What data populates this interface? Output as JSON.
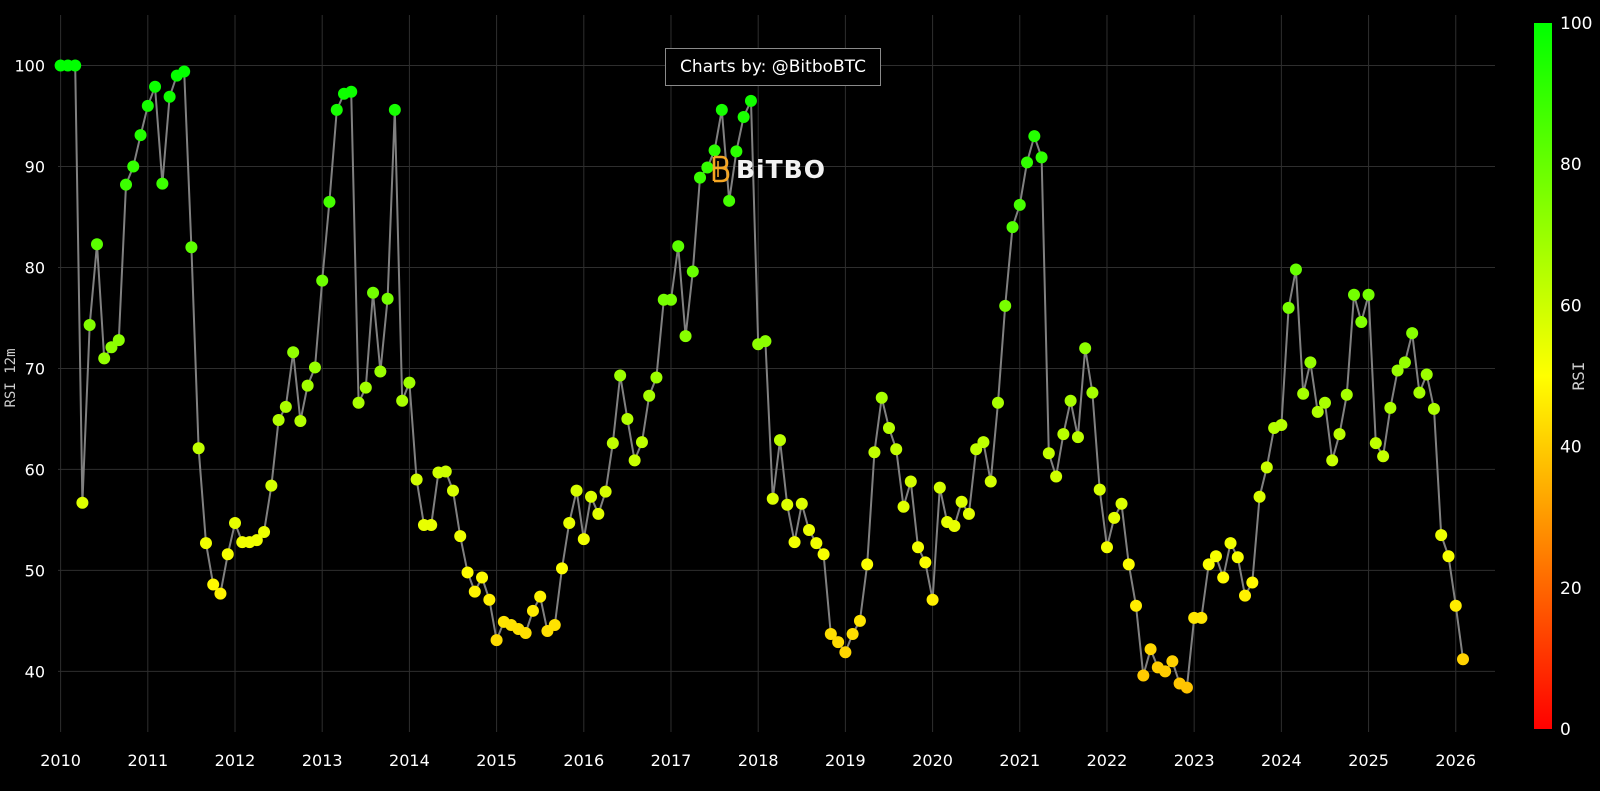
{
  "attribution": "Charts by: @BitboBTC",
  "logo_text": "BiTBO",
  "chart_data": {
    "type": "scatter",
    "title": "",
    "xlabel": "",
    "ylabel": "RSI 12m",
    "ylim": [
      34,
      105
    ],
    "xlim": [
      2009.97,
      2026.45
    ],
    "yticks": [
      40,
      50,
      60,
      70,
      80,
      90,
      100
    ],
    "xticks": [
      "2010",
      "2011",
      "2012",
      "2013",
      "2014",
      "2015",
      "2016",
      "2017",
      "2018",
      "2019",
      "2020",
      "2021",
      "2022",
      "2023",
      "2024",
      "2025",
      "2026"
    ],
    "colorbar": {
      "label": "RSI",
      "range": [
        0,
        100
      ],
      "ticks": [
        0,
        20,
        40,
        60,
        80,
        100
      ],
      "colors": [
        "#ff0000",
        "#ffff00",
        "#00ff00"
      ]
    },
    "line_color": "#808080",
    "series": [
      {
        "name": "RSI 12m",
        "x": [
          2010.0,
          2010.083,
          2010.167,
          2010.25,
          2010.333,
          2010.417,
          2010.5,
          2010.583,
          2010.667,
          2010.75,
          2010.833,
          2010.917,
          2011.0,
          2011.083,
          2011.167,
          2011.25,
          2011.333,
          2011.417,
          2011.5,
          2011.583,
          2011.667,
          2011.75,
          2011.833,
          2011.917,
          2012.0,
          2012.083,
          2012.167,
          2012.25,
          2012.333,
          2012.417,
          2012.5,
          2012.583,
          2012.667,
          2012.75,
          2012.833,
          2012.917,
          2013.0,
          2013.083,
          2013.167,
          2013.25,
          2013.333,
          2013.417,
          2013.5,
          2013.583,
          2013.667,
          2013.75,
          2013.833,
          2013.917,
          2014.0,
          2014.083,
          2014.167,
          2014.25,
          2014.333,
          2014.417,
          2014.5,
          2014.583,
          2014.667,
          2014.75,
          2014.833,
          2014.917,
          2015.0,
          2015.083,
          2015.167,
          2015.25,
          2015.333,
          2015.417,
          2015.5,
          2015.583,
          2015.667,
          2015.75,
          2015.833,
          2015.917,
          2016.0,
          2016.083,
          2016.167,
          2016.25,
          2016.333,
          2016.417,
          2016.5,
          2016.583,
          2016.667,
          2016.75,
          2016.833,
          2016.917,
          2017.0,
          2017.083,
          2017.167,
          2017.25,
          2017.333,
          2017.417,
          2017.5,
          2017.583,
          2017.667,
          2017.75,
          2017.833,
          2017.917,
          2018.0,
          2018.083,
          2018.167,
          2018.25,
          2018.333,
          2018.417,
          2018.5,
          2018.583,
          2018.667,
          2018.75,
          2018.833,
          2018.917,
          2019.0,
          2019.083,
          2019.167,
          2019.25,
          2019.333,
          2019.417,
          2019.5,
          2019.583,
          2019.667,
          2019.75,
          2019.833,
          2019.917,
          2020.0,
          2020.083,
          2020.167,
          2020.25,
          2020.333,
          2020.417,
          2020.5,
          2020.583,
          2020.667,
          2020.75,
          2020.833,
          2020.917,
          2021.0,
          2021.083,
          2021.167,
          2021.25,
          2021.333,
          2021.417,
          2021.5,
          2021.583,
          2021.667,
          2021.75,
          2021.833,
          2021.917,
          2022.0,
          2022.083,
          2022.167,
          2022.25,
          2022.333,
          2022.417,
          2022.5,
          2022.583,
          2022.667,
          2022.75,
          2022.833,
          2022.917,
          2023.0,
          2023.083,
          2023.167,
          2023.25,
          2023.333,
          2023.417,
          2023.5,
          2023.583,
          2023.667,
          2023.75,
          2023.833,
          2023.917,
          2024.0,
          2024.083,
          2024.167,
          2024.25,
          2024.333,
          2024.417,
          2024.5,
          2024.583,
          2024.667,
          2024.75,
          2024.833,
          2024.917,
          2025.0,
          2025.083,
          2025.167,
          2025.25,
          2025.333,
          2025.417,
          2025.5,
          2025.583,
          2025.667,
          2025.75,
          2025.833,
          2025.917,
          2026.0,
          2026.083
        ],
        "values": [
          100,
          100,
          100,
          56.7,
          74.3,
          82.3,
          71,
          72.1,
          72.8,
          88.2,
          90,
          93.1,
          96,
          97.9,
          88.3,
          96.9,
          99,
          99.4,
          82,
          62.1,
          52.7,
          48.6,
          47.7,
          51.6,
          54.7,
          52.8,
          52.8,
          53,
          53.8,
          58.4,
          64.9,
          66.2,
          71.6,
          64.8,
          68.3,
          70.1,
          78.7,
          86.5,
          95.6,
          97.2,
          97.4,
          66.6,
          68.1,
          77.5,
          69.7,
          76.9,
          95.6,
          66.8,
          68.6,
          59,
          54.5,
          54.5,
          59.7,
          59.8,
          57.9,
          53.4,
          49.8,
          47.9,
          49.3,
          47.1,
          43.1,
          44.9,
          44.6,
          44.2,
          43.8,
          46,
          47.4,
          44,
          44.6,
          50.2,
          54.7,
          57.9,
          53.1,
          57.3,
          55.6,
          57.8,
          62.6,
          69.3,
          65,
          60.9,
          62.7,
          67.3,
          69.1,
          76.8,
          76.8,
          82.1,
          73.2,
          79.6,
          88.9,
          89.9,
          91.6,
          95.6,
          86.6,
          91.5,
          94.9,
          96.5,
          72.4,
          72.7,
          57.1,
          62.9,
          56.5,
          52.8,
          56.6,
          54,
          52.7,
          51.6,
          43.7,
          42.9,
          41.9,
          43.7,
          45,
          50.6,
          61.7,
          67.1,
          64.1,
          62,
          56.3,
          58.8,
          52.3,
          50.8,
          47.1,
          58.2,
          54.8,
          54.4,
          56.8,
          55.6,
          62,
          62.7,
          58.8,
          66.6,
          76.2,
          84,
          86.2,
          90.4,
          93,
          90.9,
          61.6,
          59.3,
          63.5,
          66.8,
          63.2,
          72,
          67.6,
          58,
          52.3,
          55.2,
          56.6,
          50.6,
          46.5,
          39.6,
          42.2,
          40.4,
          40,
          41,
          38.8,
          38.4,
          45.3,
          45.3,
          50.6,
          51.4,
          49.3,
          52.7,
          51.3,
          47.5,
          48.8,
          57.3,
          60.2,
          64.1,
          64.4,
          76,
          79.8,
          67.5,
          70.6,
          65.7,
          66.6,
          60.9,
          63.5,
          67.4,
          77.3,
          74.6,
          77.3,
          62.6,
          61.3,
          66.1,
          69.8,
          70.6,
          73.5,
          67.6,
          69.4,
          66,
          53.5,
          51.4,
          46.5,
          41.2
        ]
      }
    ]
  }
}
